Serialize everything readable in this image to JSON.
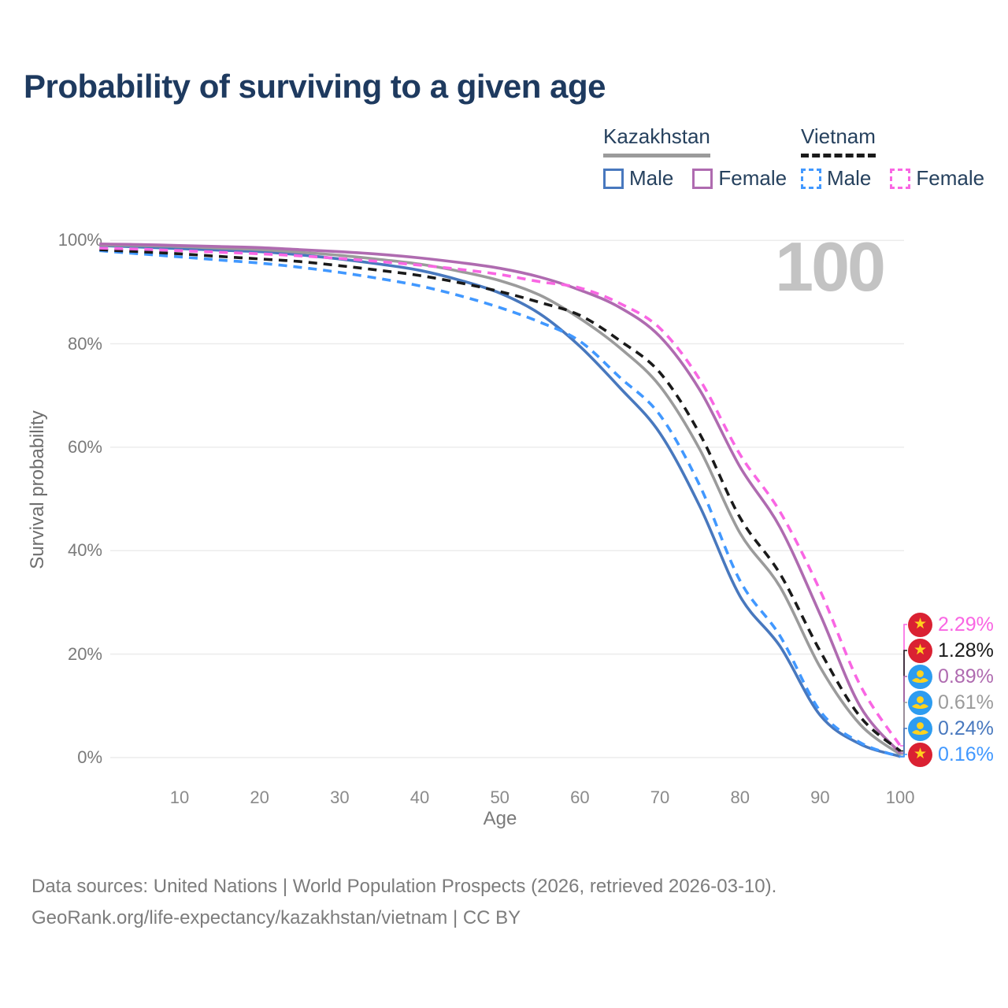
{
  "title": "Probability of surviving to a given age",
  "watermark": "100",
  "legend": {
    "groups": [
      {
        "country": "Kazakhstan",
        "underline": "solid",
        "underline_color": "#9B9B9B",
        "items": [
          {
            "label": "Male",
            "color": "#4878BE",
            "dashed": false
          },
          {
            "label": "Female",
            "color": "#AF6BB0",
            "dashed": false
          }
        ]
      },
      {
        "country": "Vietnam",
        "underline": "dashed",
        "underline_color": "#1A1A1A",
        "items": [
          {
            "label": "Male",
            "color": "#4198FF",
            "dashed": true
          },
          {
            "label": "Female",
            "color": "#F966E3",
            "dashed": true
          }
        ]
      }
    ]
  },
  "chart_data": {
    "type": "line",
    "title": "Probability of surviving to a given age",
    "xlabel": "Age",
    "ylabel": "Survival probability",
    "xlim": [
      0,
      100
    ],
    "ylim": [
      0,
      100
    ],
    "grid": "horizontal",
    "x_ticks": [
      {
        "value": 10,
        "label": "10"
      },
      {
        "value": 20,
        "label": "20"
      },
      {
        "value": 30,
        "label": "30"
      },
      {
        "value": 40,
        "label": "40"
      },
      {
        "value": 50,
        "label": "50"
      },
      {
        "value": 60,
        "label": "60"
      },
      {
        "value": 70,
        "label": "70"
      },
      {
        "value": 80,
        "label": "80"
      },
      {
        "value": 90,
        "label": "90"
      },
      {
        "value": 100,
        "label": "100"
      }
    ],
    "y_ticks": [
      {
        "value": 0,
        "label": "0%"
      },
      {
        "value": 20,
        "label": "20%"
      },
      {
        "value": 40,
        "label": "40%"
      },
      {
        "value": 60,
        "label": "60%"
      },
      {
        "value": 80,
        "label": "80%"
      },
      {
        "value": 100,
        "label": "100%"
      }
    ],
    "x": [
      0,
      5,
      10,
      15,
      20,
      25,
      30,
      35,
      40,
      45,
      50,
      55,
      60,
      65,
      70,
      75,
      80,
      85,
      90,
      95,
      100
    ],
    "series": [
      {
        "name": "Kazakhstan Male",
        "country": "Kazakhstan",
        "sex": "Male",
        "color": "#4878BE",
        "dash": "solid",
        "values": [
          99.0,
          98.7,
          98.4,
          98.1,
          97.8,
          97.2,
          96.4,
          95.4,
          94.2,
          92.3,
          89.8,
          85.8,
          79.5,
          71.5,
          62.7,
          48.5,
          31.2,
          21.5,
          8.2,
          2.6,
          0.24
        ]
      },
      {
        "name": "Kazakhstan Female",
        "country": "Kazakhstan",
        "sex": "Female",
        "color": "#AF6BB0",
        "dash": "solid",
        "values": [
          99.3,
          99.2,
          99.0,
          98.8,
          98.6,
          98.2,
          97.8,
          97.3,
          96.6,
          95.7,
          94.6,
          92.9,
          90.4,
          87.0,
          81.4,
          71.0,
          56.2,
          44.5,
          27.7,
          9.9,
          0.89
        ]
      },
      {
        "name": "Kazakhstan Both sexes",
        "country": "Kazakhstan",
        "sex": "Both",
        "color": "#9B9B9B",
        "dash": "solid",
        "values": [
          99.1,
          99.0,
          98.8,
          98.5,
          98.2,
          97.7,
          97.1,
          96.3,
          95.4,
          94.0,
          92.2,
          89.4,
          84.9,
          79.2,
          71.8,
          59.5,
          43.4,
          33.0,
          17.5,
          6.4,
          0.61
        ]
      },
      {
        "name": "Vietnam Male",
        "country": "Vietnam",
        "sex": "Male",
        "color": "#4198FF",
        "dash": "dashed",
        "values": [
          98.0,
          97.4,
          96.8,
          96.2,
          95.6,
          94.8,
          93.8,
          92.6,
          91.2,
          89.3,
          87.0,
          84.2,
          80.5,
          73.5,
          66.2,
          52.5,
          34.2,
          23.5,
          9.0,
          2.9,
          0.16
        ]
      },
      {
        "name": "Vietnam Female",
        "country": "Vietnam",
        "sex": "Female",
        "color": "#F966E3",
        "dash": "dashed",
        "values": [
          98.5,
          98.3,
          98.0,
          97.7,
          97.4,
          97.0,
          96.5,
          95.9,
          95.2,
          94.4,
          93.4,
          92.0,
          90.8,
          87.8,
          83.0,
          73.0,
          58.6,
          47.5,
          32.3,
          14.0,
          2.29
        ]
      },
      {
        "name": "Vietnam Both sexes",
        "country": "Vietnam",
        "sex": "Both",
        "color": "#1A1A1A",
        "dash": "dashed",
        "values": [
          98.2,
          97.8,
          97.4,
          96.9,
          96.4,
          95.9,
          95.1,
          94.2,
          93.2,
          91.8,
          90.1,
          88.0,
          85.5,
          80.6,
          74.4,
          62.5,
          46.4,
          35.5,
          20.6,
          7.9,
          1.28
        ]
      }
    ],
    "end_labels": [
      {
        "value": "2.29%",
        "series": "Vietnam Female",
        "flag": "vietnam",
        "color": "#F966E3"
      },
      {
        "value": "1.28%",
        "series": "Vietnam Both sexes",
        "flag": "vietnam",
        "color": "#1A1A1A"
      },
      {
        "value": "0.89%",
        "series": "Kazakhstan Female",
        "flag": "kazakhstan",
        "color": "#AF6BB0"
      },
      {
        "value": "0.61%",
        "series": "Kazakhstan Both sexes",
        "flag": "kazakhstan",
        "color": "#9B9B9B"
      },
      {
        "value": "0.24%",
        "series": "Kazakhstan Male",
        "flag": "kazakhstan",
        "color": "#4878BE"
      },
      {
        "value": "0.16%",
        "series": "Vietnam Male",
        "flag": "vietnam",
        "color": "#4198FF"
      }
    ]
  },
  "footer": {
    "line1": "Data sources: United Nations | World Population Prospects (2026, retrieved 2026-03-10).",
    "line2": "GeoRank.org/life-expectancy/kazakhstan/vietnam | CC BY"
  },
  "colors": {
    "title_text": "#1E3A5F",
    "legend_text": "#26415E",
    "grid": "#ECECEC",
    "tick_text": "#7A7A7A",
    "watermark": "#C3C3C3",
    "footer_text": "#7C7C7C",
    "vietnam_flag_red": "#DA2132",
    "kazakhstan_flag_blue": "#2D9CF0",
    "flag_yellow": "#FFD21E"
  }
}
